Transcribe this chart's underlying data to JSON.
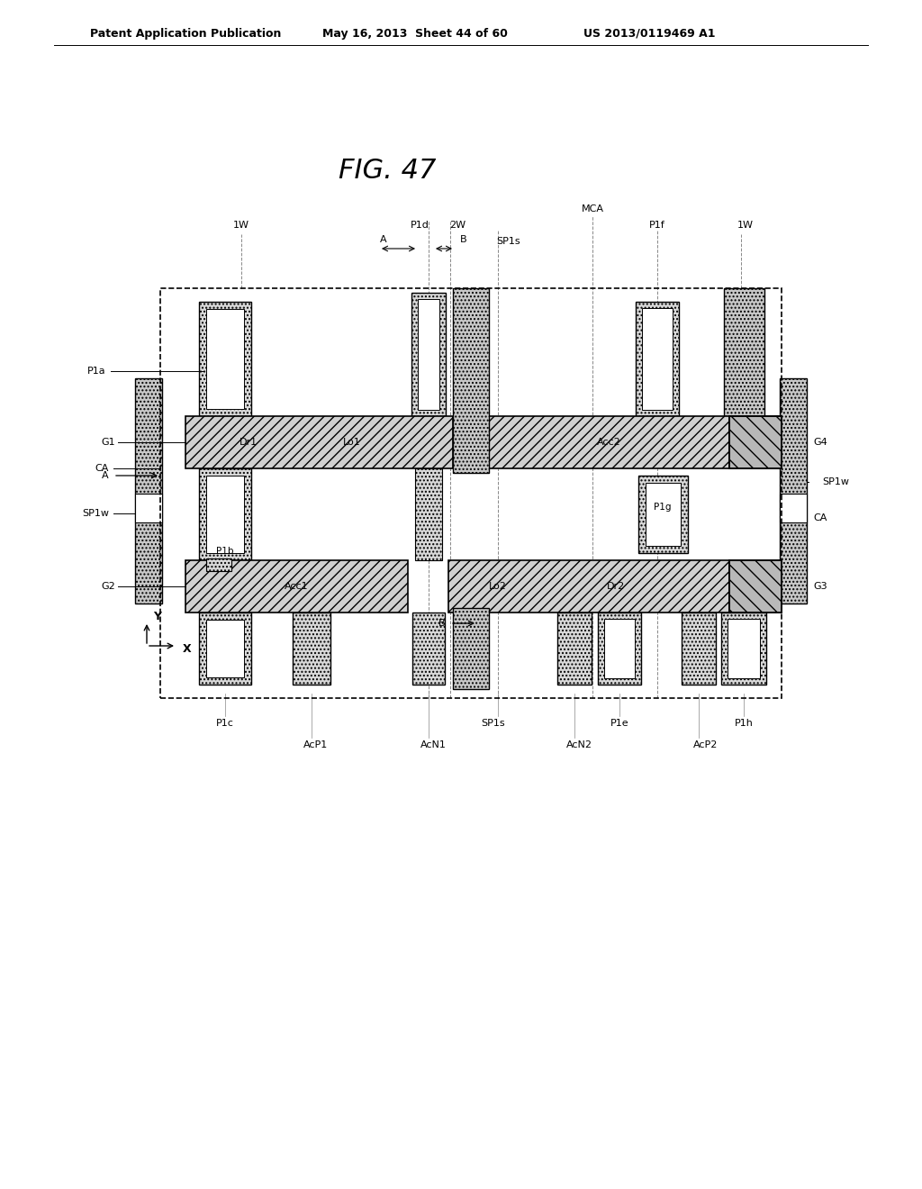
{
  "title": "FIG. 47",
  "header_left": "Patent Application Publication",
  "header_mid": "May 16, 2013  Sheet 44 of 60",
  "header_right": "US 2013/0119469 A1",
  "bg_color": "#ffffff",
  "fg_color": "#000000"
}
